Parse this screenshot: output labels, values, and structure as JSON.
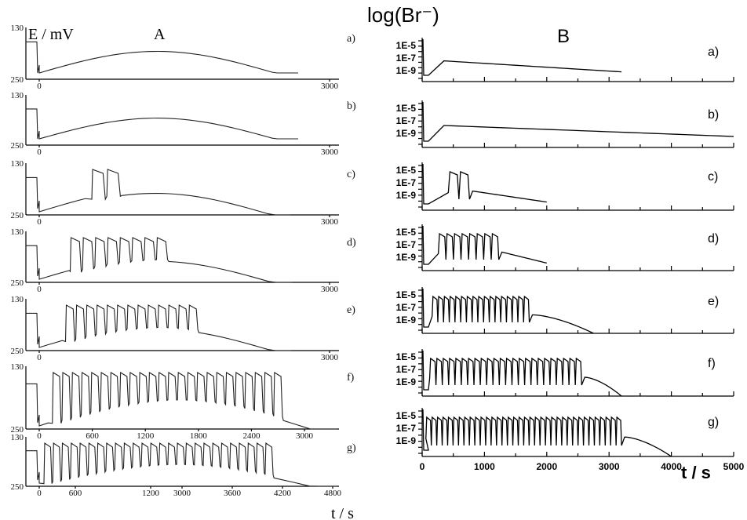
{
  "chart_data": [
    {
      "panel": "A",
      "type": "line",
      "panel_label": "A",
      "ylabel": "E / mV",
      "xlabel": "t / s",
      "y_ticks": [
        "130",
        "250"
      ],
      "ylim": [
        130,
        250
      ],
      "subplots": [
        {
          "label": "a)",
          "x_ticks": [
            "0",
            "3000"
          ],
          "xlim": [
            0,
            3000
          ],
          "n_osc": 0,
          "osc_span": [
            0,
            0
          ]
        },
        {
          "label": "b)",
          "x_ticks": [
            "0",
            "3000"
          ],
          "xlim": [
            0,
            3000
          ],
          "n_osc": 0,
          "osc_span": [
            0,
            0
          ]
        },
        {
          "label": "c)",
          "x_ticks": [
            "0",
            "3000"
          ],
          "xlim": [
            0,
            3000
          ],
          "n_osc": 2,
          "osc_span": [
            560,
            880
          ]
        },
        {
          "label": "d)",
          "x_ticks": [
            "0",
            "3000"
          ],
          "xlim": [
            0,
            3000
          ],
          "n_osc": 8,
          "osc_span": [
            330,
            1380
          ]
        },
        {
          "label": "e)",
          "x_ticks": [
            "0",
            "3000"
          ],
          "xlim": [
            0,
            3000
          ],
          "n_osc": 13,
          "osc_span": [
            280,
            1700
          ]
        },
        {
          "label": "f)",
          "x_ticks": [
            "0",
            "600",
            "1200",
            "1800",
            "2400",
            "3000"
          ],
          "xlim": [
            0,
            3000
          ],
          "n_osc": 24,
          "osc_span": [
            140,
            2600
          ]
        },
        {
          "label": "g)",
          "x_ticks": [
            "0",
            "600",
            "1200",
            "3000",
            "3600",
            "4200",
            "4800"
          ],
          "xlim": [
            0,
            4800
          ],
          "n_osc": 26,
          "osc_span": [
            80,
            4000
          ]
        }
      ]
    },
    {
      "panel": "B",
      "type": "line",
      "panel_label": "B",
      "ylabel": "log(Br⁻)",
      "xlabel": "t / s",
      "y_ticks": [
        "1E-5",
        "1E-7",
        "1E-9"
      ],
      "x_ticks": [
        "0",
        "1000",
        "2000",
        "3000",
        "4000",
        "5000"
      ],
      "xlim": [
        0,
        5000
      ],
      "subplots": [
        {
          "label": "a)",
          "end": 3200,
          "n_osc": 0,
          "osc_span": [
            0,
            0
          ]
        },
        {
          "label": "b)",
          "end": 5000,
          "n_osc": 0,
          "osc_span": [
            0,
            0
          ]
        },
        {
          "label": "c)",
          "end": 2000,
          "n_osc": 2,
          "osc_span": [
            420,
            760
          ]
        },
        {
          "label": "d)",
          "end": 2000,
          "n_osc": 8,
          "osc_span": [
            260,
            1230
          ]
        },
        {
          "label": "e)",
          "end": 2750,
          "n_osc": 17,
          "osc_span": [
            160,
            1720
          ]
        },
        {
          "label": "f)",
          "end": 3200,
          "n_osc": 24,
          "osc_span": [
            120,
            2560
          ]
        },
        {
          "label": "g)",
          "end": 4000,
          "n_osc": 36,
          "osc_span": [
            60,
            3200
          ]
        }
      ]
    }
  ]
}
